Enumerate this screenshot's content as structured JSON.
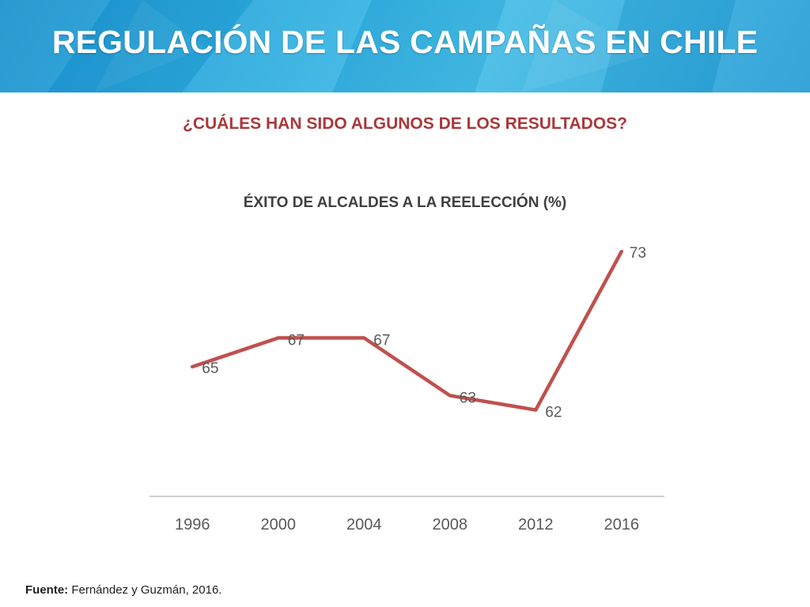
{
  "header": {
    "title": "REGULACIÓN DE LAS CAMPAÑAS EN CHILE"
  },
  "subtitle": "¿CUÁLES HAN SIDO ALGUNOS DE LOS RESULTADOS?",
  "source": {
    "label": "Fuente:",
    "text": "Fernández y  Guzmán, 2016."
  },
  "colors": {
    "banner": "#2eaee0",
    "subtitle": "#a8383b",
    "line": "#c0504d",
    "axis": "#bfbfbf",
    "text": "#404040"
  },
  "chart_data": {
    "type": "line",
    "title": "ÉXITO DE ALCALDES A LA REELECCIÓN (%)",
    "categories": [
      "1996",
      "2000",
      "2004",
      "2008",
      "2012",
      "2016"
    ],
    "series": [
      {
        "values": [
          65,
          67,
          67,
          63,
          62,
          73
        ]
      }
    ],
    "data_labels": true,
    "grid": false,
    "legend": "none",
    "ylim": [
      56,
      74
    ]
  }
}
